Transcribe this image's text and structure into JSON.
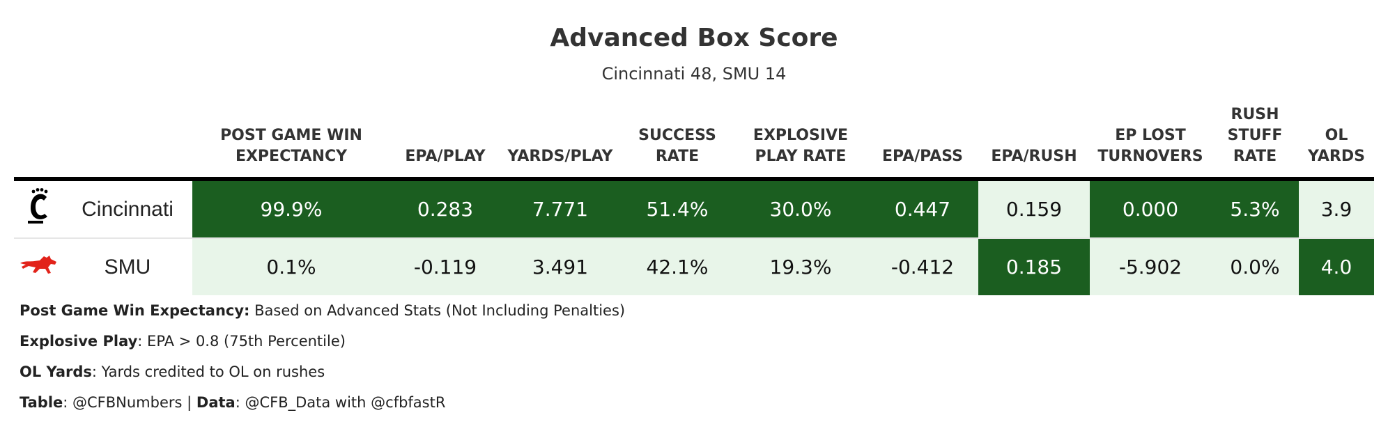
{
  "title": "Advanced Box Score",
  "subtitle": "Cincinnati 48, SMU 14",
  "columns": [
    {
      "key": "wp",
      "label": "POST GAME WIN EXPECTANCY"
    },
    {
      "key": "epa_play",
      "label": "EPA/PLAY"
    },
    {
      "key": "ypp",
      "label": "YARDS/PLAY"
    },
    {
      "key": "success",
      "label": "SUCCESS RATE"
    },
    {
      "key": "explosive",
      "label": "EXPLOSIVE PLAY RATE"
    },
    {
      "key": "epa_pass",
      "label": "EPA/PASS"
    },
    {
      "key": "epa_rush",
      "label": "EPA/RUSH"
    },
    {
      "key": "ep_lost",
      "label": "EP LOST TURNOVERS"
    },
    {
      "key": "stuff",
      "label": "RUSH STUFF RATE"
    },
    {
      "key": "ol",
      "label": "OL YARDS"
    }
  ],
  "colors": {
    "dark": "#1b5e20",
    "light": "#e8f5e9",
    "cincinnati_logo": "#000000",
    "smu_logo": "#e2231a"
  },
  "chart_data": {
    "type": "table",
    "teams": [
      {
        "name": "Cincinnati",
        "logo": "cincinnati-logo",
        "values": [
          "99.9%",
          "0.283",
          "7.771",
          "51.4%",
          "30.0%",
          "0.447",
          "0.159",
          "0.000",
          "5.3%",
          "3.9"
        ],
        "shading": [
          "dark",
          "dark",
          "dark",
          "dark",
          "dark",
          "dark",
          "light",
          "dark",
          "dark",
          "light"
        ]
      },
      {
        "name": "SMU",
        "logo": "smu-mustang-logo",
        "values": [
          "0.1%",
          "-0.119",
          "3.491",
          "42.1%",
          "19.3%",
          "-0.412",
          "0.185",
          "-5.902",
          "0.0%",
          "4.0"
        ],
        "shading": [
          "light",
          "light",
          "light",
          "light",
          "light",
          "light",
          "dark",
          "light",
          "light",
          "dark"
        ]
      }
    ]
  },
  "footnotes": [
    {
      "term": "Post Game Win Expectancy:",
      "text": " Based on Advanced Stats (Not Including Penalties)"
    },
    {
      "term": "Explosive Play",
      "text": ": EPA > 0.8 (75th Percentile)"
    },
    {
      "term": "OL Yards",
      "text": ": Yards credited to OL on rushes"
    }
  ],
  "credit": {
    "term1": "Table",
    "text1": ": @CFBNumbers | ",
    "term2": "Data",
    "text2": ": @CFB_Data with @cfbfastR"
  }
}
